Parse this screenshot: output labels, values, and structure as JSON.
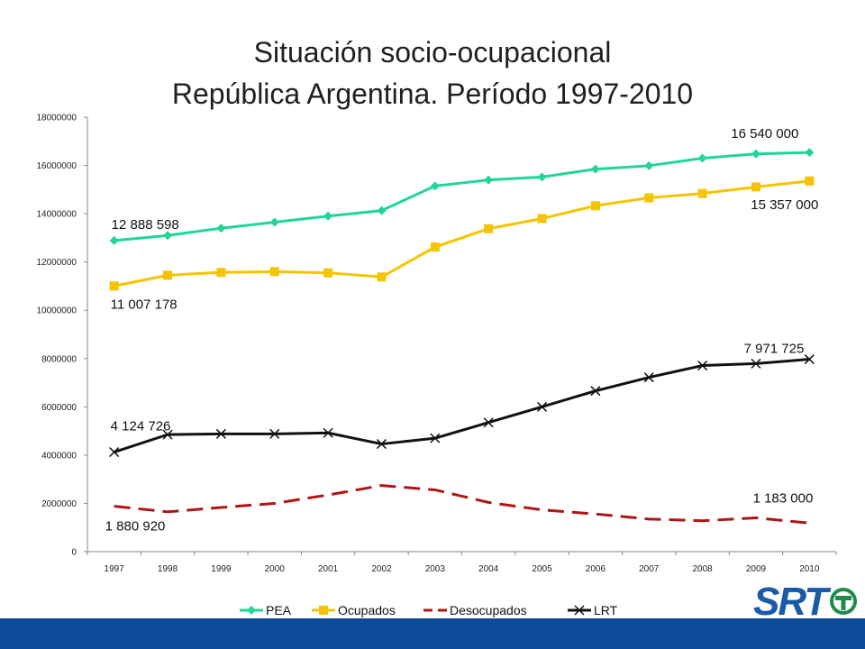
{
  "chart_data": {
    "type": "line",
    "title": "Situación socio-ocupacional",
    "subtitle": "República Argentina. Período 1997-2010",
    "categories": [
      "1997",
      "1998",
      "1999",
      "2000",
      "2001",
      "2002",
      "2003",
      "2004",
      "2005",
      "2006",
      "2007",
      "2008",
      "2009",
      "2010"
    ],
    "ylim": [
      0,
      18000000
    ],
    "yticks": [
      "0",
      "2000000",
      "4000000",
      "6000000",
      "8000000",
      "10000000",
      "12000000",
      "14000000",
      "16000000",
      "18000000"
    ],
    "grid": false,
    "legend_position": "bottom",
    "series": [
      {
        "name": "PEA",
        "color": "#1fd59a",
        "marker": "diamond",
        "dash": false,
        "values": [
          12888598,
          13100000,
          13400000,
          13650000,
          13900000,
          14130000,
          15150000,
          15400000,
          15520000,
          15850000,
          15990000,
          16300000,
          16480000,
          16540000
        ]
      },
      {
        "name": "Ocupados",
        "color": "#f5c400",
        "marker": "square",
        "dash": false,
        "values": [
          11007178,
          11450000,
          11570000,
          11600000,
          11550000,
          11380000,
          12620000,
          13380000,
          13800000,
          14330000,
          14660000,
          14840000,
          15110000,
          15357000
        ]
      },
      {
        "name": "Desocupados",
        "color": "#b01515",
        "marker": "none",
        "dash": true,
        "values": [
          1880920,
          1650000,
          1830000,
          2000000,
          2350000,
          2740000,
          2560000,
          2040000,
          1730000,
          1560000,
          1350000,
          1280000,
          1400000,
          1183000
        ]
      },
      {
        "name": "LRT",
        "color": "#111111",
        "marker": "x",
        "dash": false,
        "values": [
          4124726,
          4850000,
          4880000,
          4880000,
          4920000,
          4460000,
          4700000,
          5350000,
          6000000,
          6660000,
          7220000,
          7710000,
          7790000,
          7971725
        ]
      }
    ],
    "annotations": [
      {
        "text": "16 540 000",
        "series": "PEA",
        "index": 13
      },
      {
        "text": "12 888 598",
        "series": "PEA",
        "index": 0
      },
      {
        "text": "15 357 000",
        "series": "Ocupados",
        "index": 13
      },
      {
        "text": "11 007 178",
        "series": "Ocupados",
        "index": 0
      },
      {
        "text": "7 971 725",
        "series": "LRT",
        "index": 13
      },
      {
        "text": "4 124 726",
        "series": "LRT",
        "index": 0
      },
      {
        "text": "1 183 000",
        "series": "Desocupados",
        "index": 13
      },
      {
        "text": "1 880 920",
        "series": "Desocupados",
        "index": 0
      }
    ]
  },
  "logo": {
    "text": "SRT"
  },
  "colors": {
    "bottom_bar": "#0d4a9a",
    "logo_blue": "#1a5aa8",
    "logo_green": "#1f8a4a"
  }
}
